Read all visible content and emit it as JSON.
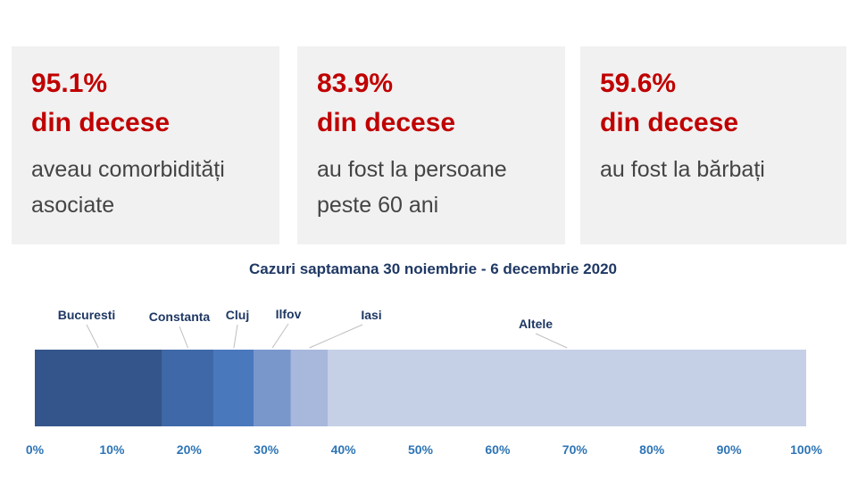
{
  "cards": [
    {
      "pct": "95.1%",
      "head": "din decese",
      "desc_line1": "aveau comorbidități",
      "desc_line2": "asociate"
    },
    {
      "pct": "83.9%",
      "head": "din decese",
      "desc_line1": "au fost la persoane",
      "desc_line2": "peste 60 ani"
    },
    {
      "pct": "59.6%",
      "head": "din decese",
      "desc_line1": "au fost la bărbați",
      "desc_line2": ""
    }
  ],
  "chart_data": {
    "type": "bar",
    "orientation": "horizontal-stacked-100",
    "title": "Cazuri saptamana 30 noiembrie - 6 decembrie 2020",
    "categories": [
      "Bucuresti",
      "Constanta",
      "Cluj",
      "Ilfov",
      "Iasi",
      "Altele"
    ],
    "values": [
      16.5,
      6.7,
      5.2,
      4.8,
      4.8,
      62.0
    ],
    "colors": [
      "#34558b",
      "#3f68a8",
      "#4a78bd",
      "#7a97cc",
      "#a7b8dc",
      "#c5d0e6"
    ],
    "xlim": [
      0,
      100
    ],
    "xticks": [
      "0%",
      "10%",
      "20%",
      "30%",
      "40%",
      "50%",
      "60%",
      "70%",
      "80%",
      "90%",
      "100%"
    ],
    "grid": false,
    "legend": "callout labels above bar"
  }
}
